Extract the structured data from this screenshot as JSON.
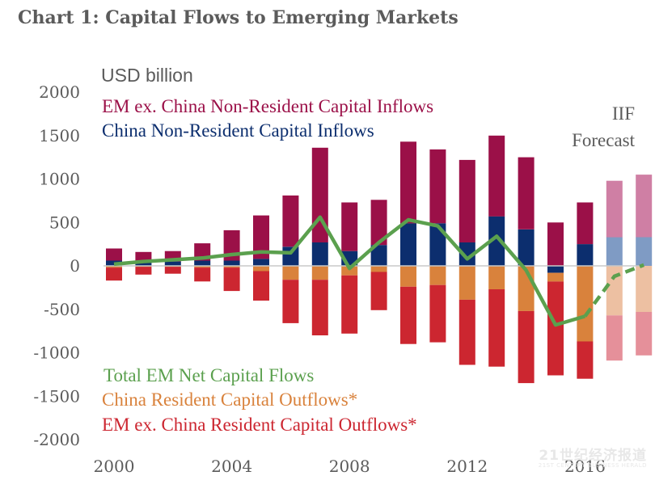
{
  "title": "Chart 1: Capital Flows to Emerging Markets",
  "unit_label": "USD billion",
  "forecast_label": [
    "IIF",
    "Forecast"
  ],
  "watermark": {
    "main": "21世纪经济报道",
    "sub": "21ST CENTURY BUSINESS HERALD"
  },
  "colors": {
    "em_inflow": "#9b1048",
    "china_inflow": "#0c2e6e",
    "china_outflow": "#d9823c",
    "em_outflow": "#cc2630",
    "net_line": "#5ba04e",
    "em_inflow_fc": "#cf7fa4",
    "china_inflow_fc": "#7f9bc4",
    "china_outflow_fc": "#edc0a2",
    "em_outflow_fc": "#e5909a",
    "axis_text": "#5b5b5b",
    "zero_line": "#c8c8c8"
  },
  "chart_data": {
    "type": "bar",
    "ylim": [
      -2000,
      2000
    ],
    "yticks": [
      2000,
      1500,
      1000,
      500,
      0,
      -500,
      -1000,
      -1500,
      -2000
    ],
    "xticks": [
      "2000",
      "2004",
      "2008",
      "2012",
      "2016"
    ],
    "years": [
      2000,
      2001,
      2002,
      2003,
      2004,
      2005,
      2006,
      2007,
      2008,
      2009,
      2010,
      2011,
      2012,
      2013,
      2014,
      2015,
      2016,
      2017,
      2018
    ],
    "forecast_years": [
      2017,
      2018
    ],
    "legend": [
      {
        "label": "EM ex. China Non-Resident Capital Inflows",
        "color_key": "em_inflow"
      },
      {
        "label": "China Non-Resident Capital Inflows",
        "color_key": "china_inflow"
      },
      {
        "label": "Total EM Net Capital Flows",
        "color_key": "net_line"
      },
      {
        "label": "China Resident Capital Outflows*",
        "color_key": "china_outflow"
      },
      {
        "label": "EM ex. China Resident Capital Outflows*",
        "color_key": "em_outflow"
      }
    ],
    "series": [
      {
        "name": "China Non-Resident Capital Inflows",
        "values": [
          60,
          40,
          50,
          60,
          60,
          80,
          220,
          270,
          170,
          240,
          490,
          490,
          270,
          570,
          420,
          -80,
          250,
          330,
          330
        ]
      },
      {
        "name": "EM ex. China Non-Resident Capital Inflows",
        "values": [
          140,
          120,
          120,
          200,
          350,
          500,
          590,
          1090,
          560,
          520,
          940,
          850,
          950,
          930,
          830,
          500,
          480,
          650,
          720
        ]
      },
      {
        "name": "China Resident Capital Outflows*",
        "values": [
          -20,
          -10,
          -10,
          -20,
          -20,
          -60,
          -160,
          -160,
          -110,
          -70,
          -240,
          -220,
          -390,
          -270,
          -520,
          -100,
          -870,
          -570,
          -530
        ]
      },
      {
        "name": "EM ex. China Resident Capital Outflows*",
        "values": [
          -150,
          -90,
          -80,
          -160,
          -270,
          -340,
          -500,
          -640,
          -670,
          -440,
          -660,
          -660,
          -750,
          -890,
          -830,
          -1080,
          -430,
          -520,
          -500
        ]
      },
      {
        "name": "Total EM Net Capital Flows",
        "values": [
          20,
          50,
          70,
          90,
          130,
          160,
          150,
          560,
          -30,
          270,
          530,
          460,
          80,
          340,
          -50,
          -680,
          -580,
          -120,
          10
        ]
      }
    ]
  }
}
